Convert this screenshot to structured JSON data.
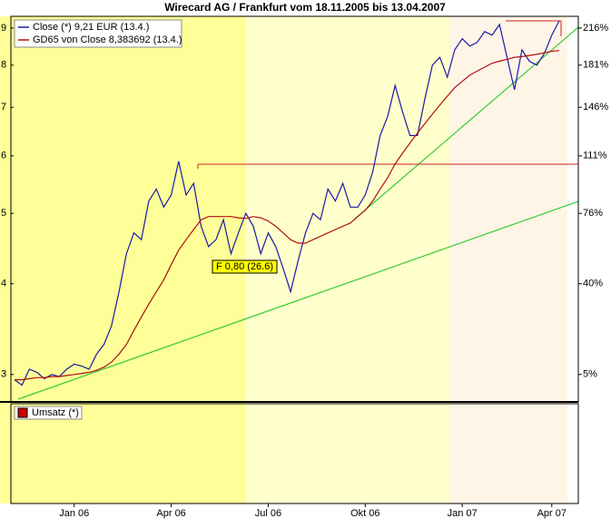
{
  "chart_data": {
    "type": "line",
    "title": "Wirecard  AG / Frankfurt vom 18.11.2005 bis 13.04.2007",
    "log_scale": true,
    "categories": [
      null,
      null,
      null,
      null,
      null,
      null,
      null,
      null,
      "Jan 06",
      null,
      null,
      null,
      null,
      null,
      null,
      null,
      null,
      null,
      null,
      null,
      null,
      "Apr 06",
      null,
      null,
      null,
      null,
      null,
      null,
      null,
      null,
      null,
      null,
      null,
      null,
      "Jul 06",
      null,
      null,
      null,
      null,
      null,
      null,
      null,
      null,
      null,
      null,
      null,
      null,
      "Okt 06",
      null,
      null,
      null,
      null,
      null,
      null,
      null,
      null,
      null,
      null,
      null,
      null,
      "Jan 07",
      null,
      null,
      null,
      null,
      null,
      null,
      null,
      null,
      null,
      null,
      null,
      "Apr 07",
      null
    ],
    "series": [
      {
        "name": "Close (*) 9,21 EUR (13.4.)",
        "color": "#1a1aa6",
        "values": [
          2.95,
          2.9,
          3.05,
          3.02,
          2.96,
          3.0,
          2.98,
          3.05,
          3.1,
          3.08,
          3.05,
          3.2,
          3.3,
          3.5,
          3.9,
          4.4,
          4.7,
          4.6,
          5.2,
          5.4,
          5.1,
          5.3,
          5.9,
          5.3,
          5.5,
          4.8,
          4.5,
          4.6,
          4.9,
          4.4,
          4.7,
          5.0,
          4.8,
          4.4,
          4.7,
          4.5,
          4.2,
          3.9,
          4.3,
          4.7,
          5.0,
          4.9,
          5.4,
          5.2,
          5.5,
          5.1,
          5.1,
          5.3,
          5.7,
          6.4,
          6.8,
          7.5,
          6.9,
          6.4,
          6.4,
          7.2,
          8.0,
          8.2,
          7.7,
          8.4,
          8.7,
          8.5,
          8.6,
          8.9,
          8.8,
          9.1,
          8.2,
          7.4,
          8.4,
          8.1,
          8.0,
          8.3,
          8.8,
          9.21
        ]
      },
      {
        "name": "GD65 von Close 8,383692 (13.4.)",
        "color": "#b01010",
        "values": [
          2.95,
          2.95,
          2.96,
          2.97,
          2.97,
          2.98,
          2.98,
          2.99,
          3.0,
          3.01,
          3.02,
          3.04,
          3.07,
          3.12,
          3.2,
          3.3,
          3.45,
          3.6,
          3.75,
          3.9,
          4.05,
          4.25,
          4.45,
          4.6,
          4.75,
          4.9,
          4.95,
          4.95,
          4.95,
          4.95,
          4.93,
          4.92,
          4.95,
          4.93,
          4.88,
          4.8,
          4.7,
          4.6,
          4.55,
          4.55,
          4.6,
          4.65,
          4.7,
          4.75,
          4.8,
          4.85,
          4.95,
          5.05,
          5.2,
          5.4,
          5.6,
          5.85,
          6.05,
          6.25,
          6.45,
          6.65,
          6.85,
          7.05,
          7.25,
          7.45,
          7.6,
          7.75,
          7.85,
          7.95,
          8.05,
          8.1,
          8.15,
          8.2,
          8.22,
          8.25,
          8.28,
          8.32,
          8.36,
          8.38
        ]
      }
    ],
    "ylim": [
      2.75,
      9.34
    ],
    "yticks": [
      3,
      4,
      5,
      6,
      7,
      8,
      9
    ],
    "y2ticks": [
      {
        "value": 3,
        "label": "5%"
      },
      {
        "value": 4,
        "label": "40%"
      },
      {
        "value": 5,
        "label": "76%"
      },
      {
        "value": 6,
        "label": "111%"
      },
      {
        "value": 7,
        "label": "146%"
      },
      {
        "value": 8,
        "label": "181%"
      },
      {
        "value": 9,
        "label": "216%"
      }
    ],
    "annotation": "F 0,80 (26.6)",
    "volume_legend": "Umsatz (*)",
    "volume_color": "#cc0000"
  }
}
